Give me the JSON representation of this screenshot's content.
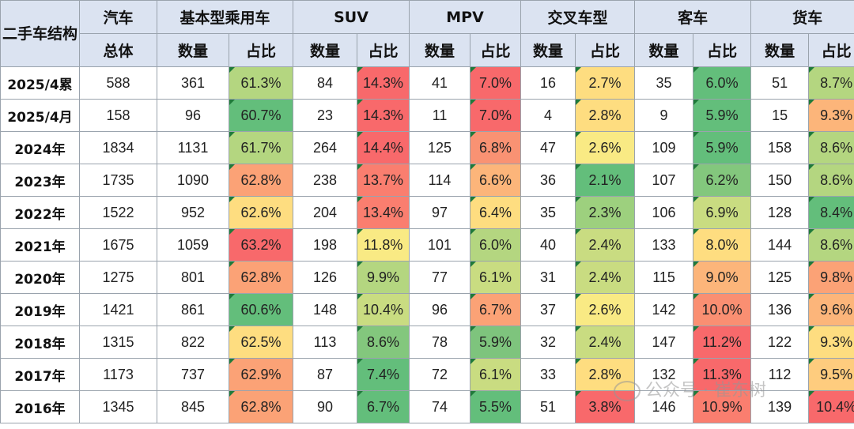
{
  "corner_label": "二手车结构",
  "header_groups": [
    "汽车",
    "基本型乘用车",
    "SUV",
    "MPV",
    "交叉车型",
    "客车",
    "货车"
  ],
  "subheaders": [
    "总体",
    "数量",
    "占比",
    "数量",
    "占比",
    "数量",
    "占比",
    "数量",
    "占比",
    "数量",
    "占比",
    "数量",
    "占比"
  ],
  "rows": [
    {
      "label": "2025/4累",
      "cells": [
        "588",
        "361",
        "61.3%",
        "84",
        "14.3%",
        "41",
        "7.0%",
        "16",
        "2.7%",
        "35",
        "6.0%",
        "51",
        "8.7%"
      ]
    },
    {
      "label": "2025/4月",
      "cells": [
        "158",
        "96",
        "60.7%",
        "23",
        "14.3%",
        "11",
        "7.0%",
        "4",
        "2.8%",
        "9",
        "5.9%",
        "15",
        "9.3%"
      ]
    },
    {
      "label": "2024年",
      "cells": [
        "1834",
        "1131",
        "61.7%",
        "264",
        "14.4%",
        "125",
        "6.8%",
        "47",
        "2.6%",
        "109",
        "5.9%",
        "158",
        "8.6%"
      ]
    },
    {
      "label": "2023年",
      "cells": [
        "1735",
        "1090",
        "62.8%",
        "238",
        "13.7%",
        "114",
        "6.6%",
        "36",
        "2.1%",
        "107",
        "6.2%",
        "150",
        "8.6%"
      ]
    },
    {
      "label": "2022年",
      "cells": [
        "1522",
        "952",
        "62.6%",
        "204",
        "13.4%",
        "97",
        "6.4%",
        "35",
        "2.3%",
        "106",
        "6.9%",
        "128",
        "8.4%"
      ]
    },
    {
      "label": "2021年",
      "cells": [
        "1675",
        "1059",
        "63.2%",
        "198",
        "11.8%",
        "101",
        "6.0%",
        "40",
        "2.4%",
        "133",
        "8.0%",
        "144",
        "8.6%"
      ]
    },
    {
      "label": "2020年",
      "cells": [
        "1275",
        "801",
        "62.8%",
        "126",
        "9.9%",
        "77",
        "6.1%",
        "31",
        "2.4%",
        "115",
        "9.0%",
        "125",
        "9.8%"
      ]
    },
    {
      "label": "2019年",
      "cells": [
        "1421",
        "861",
        "60.6%",
        "148",
        "10.4%",
        "96",
        "6.7%",
        "37",
        "2.6%",
        "142",
        "10.0%",
        "136",
        "9.6%"
      ]
    },
    {
      "label": "2018年",
      "cells": [
        "1315",
        "822",
        "62.5%",
        "113",
        "8.6%",
        "78",
        "5.9%",
        "32",
        "2.4%",
        "147",
        "11.2%",
        "122",
        "9.3%"
      ]
    },
    {
      "label": "2017年",
      "cells": [
        "1173",
        "737",
        "62.9%",
        "87",
        "7.4%",
        "72",
        "6.1%",
        "33",
        "2.8%",
        "132",
        "11.3%",
        "112",
        "9.5%"
      ]
    },
    {
      "label": "2016年",
      "cells": [
        "1345",
        "845",
        "62.8%",
        "90",
        "6.7%",
        "74",
        "5.5%",
        "51",
        "3.8%",
        "146",
        "10.9%",
        "139",
        "10.4%"
      ]
    }
  ],
  "pct_colors": [
    [
      "#b4d680",
      "#f8696b",
      "#f8696b",
      "#fedd80",
      "#63be7b",
      "#b4d680"
    ],
    [
      "#63be7b",
      "#f8696b",
      "#f8696b",
      "#fedd80",
      "#63be7b",
      "#fcb57a"
    ],
    [
      "#b4d680",
      "#f8696b",
      "#f99273",
      "#f9ea84",
      "#63be7b",
      "#b4d680"
    ],
    [
      "#fba276",
      "#fa7e6f",
      "#fcb57a",
      "#63be7b",
      "#83c77d",
      "#b4d680"
    ],
    [
      "#fedd80",
      "#fa7e6f",
      "#fedd80",
      "#9dd07e",
      "#c9dc81",
      "#63be7b"
    ],
    [
      "#f8696b",
      "#f9ea84",
      "#b4d680",
      "#c9dc81",
      "#fedd80",
      "#b4d680"
    ],
    [
      "#fba276",
      "#b4d680",
      "#c9dc81",
      "#c9dc81",
      "#fcb57a",
      "#fba276"
    ],
    [
      "#63be7b",
      "#c9dc81",
      "#fba276",
      "#f9ea84",
      "#fa8f72",
      "#fcb57a"
    ],
    [
      "#fedd80",
      "#83c77d",
      "#7ec47d",
      "#c9dc81",
      "#f8696b",
      "#fedd80"
    ],
    [
      "#fba276",
      "#63be7b",
      "#c9dc81",
      "#fedd80",
      "#f8696b",
      "#fecc7e"
    ],
    [
      "#fba276",
      "#63be7b",
      "#63be7b",
      "#f8696b",
      "#fa7e6f",
      "#f8696b"
    ]
  ],
  "watermark": "公众号 · 崔东树"
}
